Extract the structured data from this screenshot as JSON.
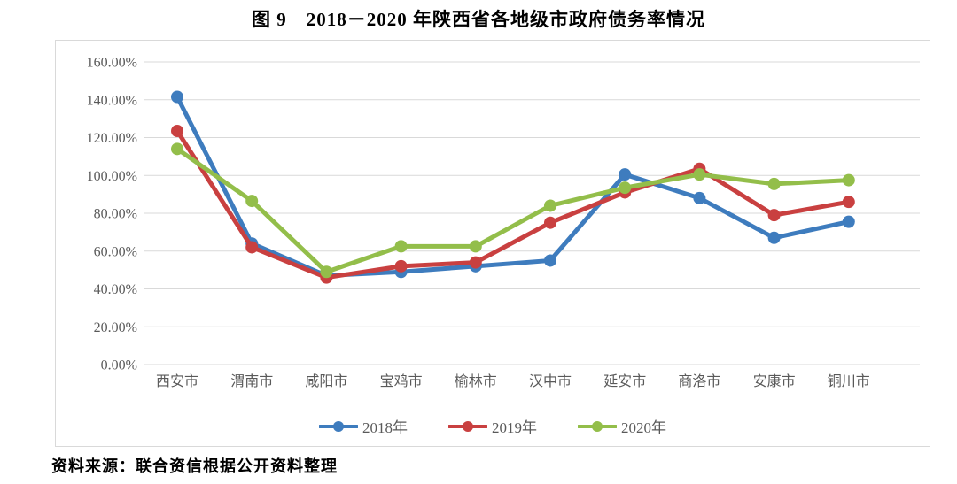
{
  "page": {
    "title": "图 9　2018－2020 年陕西省各地级市政府债务率情况",
    "source_note": "资料来源：联合资信根据公开资料整理"
  },
  "colors": {
    "grid": "#d9d9d9",
    "frame_border": "#d9d9d9",
    "axis_text": "#595959",
    "series_2018": "#3e7cbe",
    "series_2019": "#c94040",
    "series_2020": "#93be4a"
  },
  "chart_data": {
    "type": "line",
    "title": "图 9　2018－2020 年陕西省各地级市政府债务率情况",
    "categories": [
      "西安市",
      "渭南市",
      "咸阳市",
      "宝鸡市",
      "榆林市",
      "汉中市",
      "延安市",
      "商洛市",
      "安康市",
      "铜川市"
    ],
    "series": [
      {
        "name": "2018年",
        "color": "#3e7cbe",
        "values": [
          141.5,
          64,
          47,
          49,
          52,
          55,
          100.5,
          88,
          67,
          75.5
        ]
      },
      {
        "name": "2019年",
        "color": "#c94040",
        "values": [
          123.5,
          62,
          46,
          52,
          54,
          75,
          91,
          103.5,
          79,
          86
        ]
      },
      {
        "name": "2020年",
        "color": "#93be4a",
        "values": [
          114,
          86.5,
          49,
          62.5,
          62.5,
          84,
          93.5,
          100.5,
          95.5,
          97.5
        ]
      }
    ],
    "xlabel": "",
    "ylabel": "",
    "ylim": [
      0,
      160
    ],
    "y_tick_step": 20,
    "y_tick_labels": [
      "0.00%",
      "20.00%",
      "40.00%",
      "60.00%",
      "80.00%",
      "100.00%",
      "120.00%",
      "140.00%",
      "160.00%"
    ],
    "grid": true,
    "legend_position": "bottom",
    "marker": "circle"
  },
  "legend": {
    "items": [
      {
        "label": "2018年"
      },
      {
        "label": "2019年"
      },
      {
        "label": "2020年"
      }
    ]
  }
}
